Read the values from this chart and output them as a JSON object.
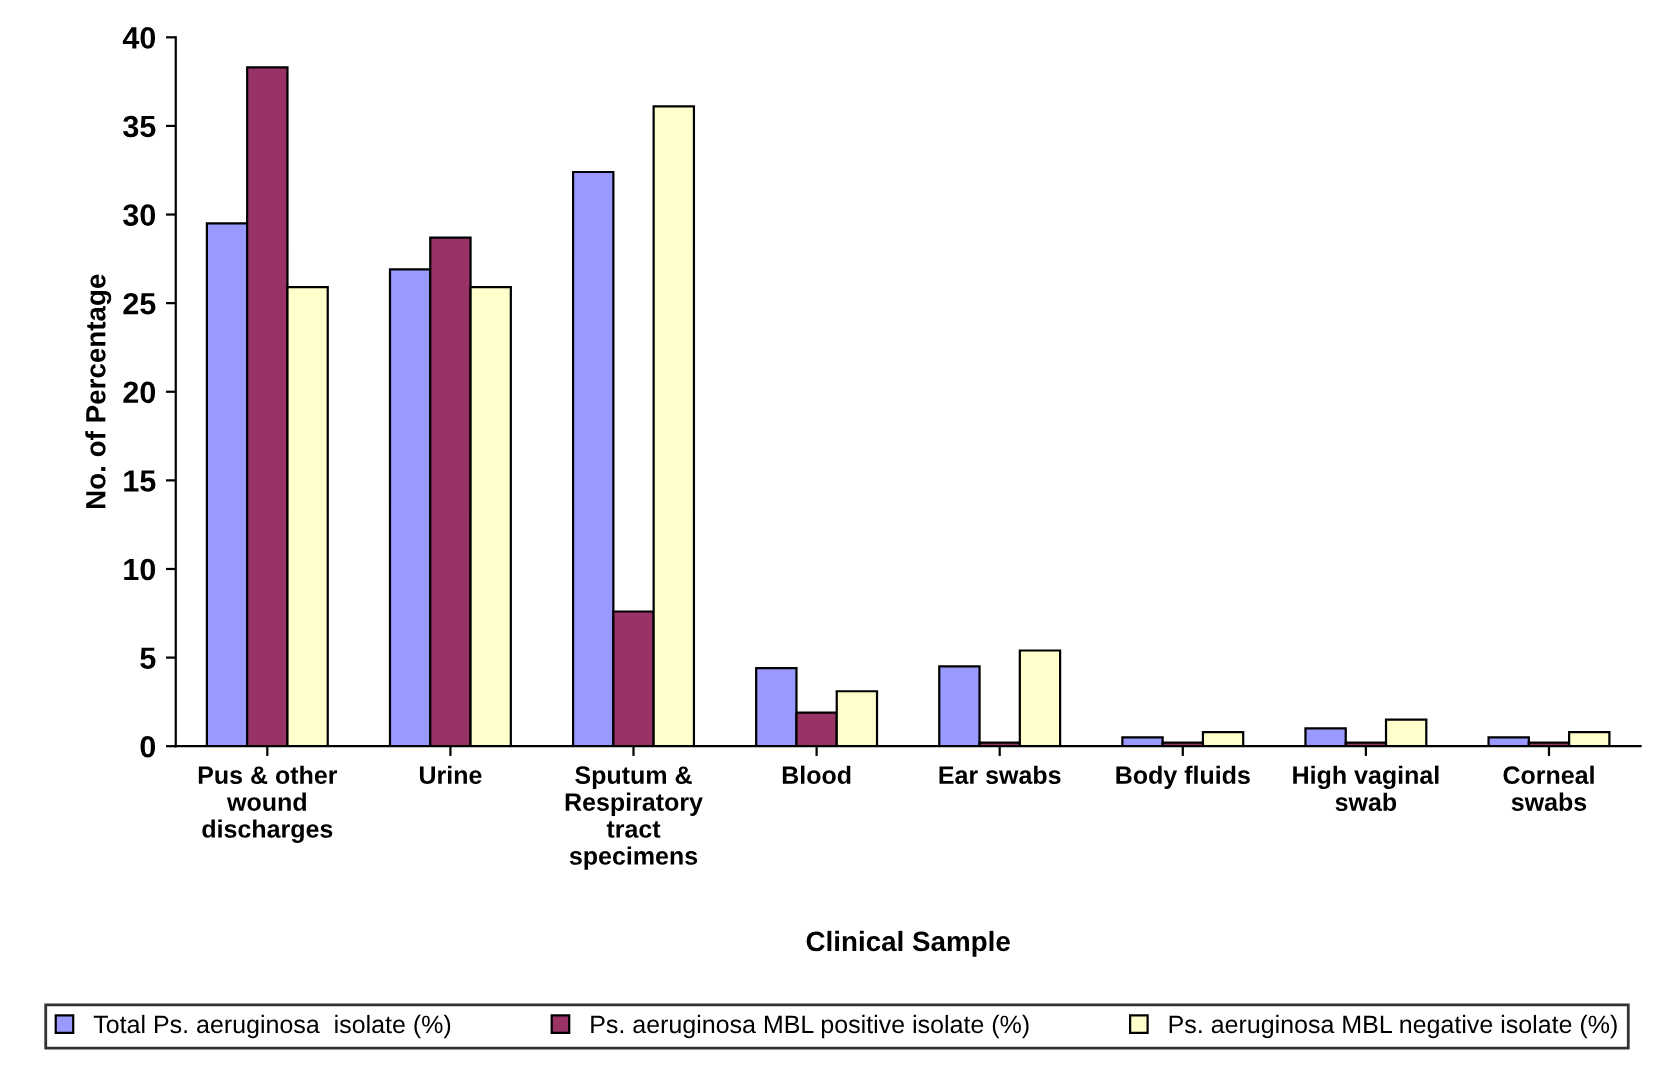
{
  "chart_data": {
    "type": "bar",
    "xlabel": "Clinical Sample",
    "ylabel": "No. of Percentage",
    "categories": [
      "Pus & other\nwound\ndischarges",
      "Urine",
      "Sputum &\nRespiratory\ntract\nspecimens",
      "Blood",
      "Ear swabs",
      "Body fluids",
      "High vaginal\nswab",
      "Corneal\nswabs"
    ],
    "series": [
      {
        "name": "Total Ps. aeruginosa  isolate (%)",
        "color": "#9999ff",
        "values": [
          29.5,
          26.9,
          32.4,
          4.4,
          4.5,
          0.5,
          1.0,
          0.5
        ]
      },
      {
        "name": "Ps. aeruginosa MBL positive isolate (%)",
        "color": "#993366",
        "values": [
          38.3,
          28.7,
          7.6,
          1.9,
          0.2,
          0.2,
          0.2,
          0.2
        ]
      },
      {
        "name": "Ps. aeruginosa MBL negative isolate (%)",
        "color": "#ffffcc",
        "values": [
          25.9,
          25.9,
          36.1,
          3.1,
          5.4,
          0.8,
          1.5,
          0.8
        ]
      }
    ],
    "ylim": [
      0,
      40
    ],
    "yticks": [
      0,
      5,
      10,
      15,
      20,
      25,
      30,
      35,
      40
    ],
    "grid": false,
    "legend": "bottom"
  }
}
